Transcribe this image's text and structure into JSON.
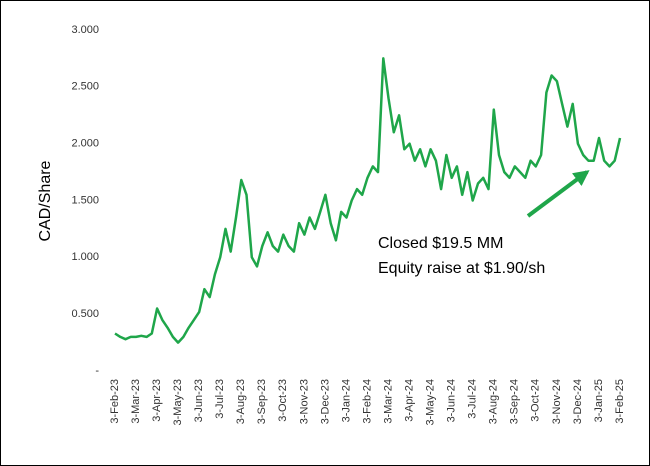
{
  "chart_data": {
    "type": "line",
    "y_label": "CAD/Share",
    "annotation": [
      "Closed $19.5 MM",
      "Equity raise at $1.90/sh"
    ],
    "categories": [
      "3-Feb-23",
      null,
      null,
      null,
      "3-Mar-23",
      null,
      null,
      null,
      "3-Apr-23",
      null,
      null,
      null,
      "3-May-23",
      null,
      null,
      null,
      "3-Jun-23",
      null,
      null,
      null,
      "3-Jul-23",
      null,
      null,
      null,
      "3-Aug-23",
      null,
      null,
      null,
      "3-Sep-23",
      null,
      null,
      null,
      "3-Oct-23",
      null,
      null,
      null,
      "3-Nov-23",
      null,
      null,
      null,
      "3-Dec-23",
      null,
      null,
      null,
      "3-Jan-24",
      null,
      null,
      null,
      "3-Feb-24",
      null,
      null,
      null,
      "3-Mar-24",
      null,
      null,
      null,
      "3-Apr-24",
      null,
      null,
      null,
      "3-May-24",
      null,
      null,
      null,
      "3-Jun-24",
      null,
      null,
      null,
      "3-Jul-24",
      null,
      null,
      null,
      "3-Aug-24",
      null,
      null,
      null,
      "3-Sep-24",
      null,
      null,
      null,
      "3-Oct-24",
      null,
      null,
      null,
      "3-Nov-24",
      null,
      null,
      null,
      "3-Dec-24",
      null,
      null,
      null,
      "3-Jan-25",
      null,
      null,
      null,
      "3-Feb-25"
    ],
    "series": [
      {
        "name": "CAD/Share",
        "color": "#1fa64a",
        "values": [
          0.33,
          0.3,
          0.28,
          0.3,
          0.3,
          0.31,
          0.3,
          0.33,
          0.55,
          0.45,
          0.38,
          0.3,
          0.25,
          0.3,
          0.38,
          0.45,
          0.52,
          0.72,
          0.65,
          0.85,
          1.0,
          1.25,
          1.05,
          1.35,
          1.68,
          1.55,
          1.0,
          0.92,
          1.1,
          1.22,
          1.1,
          1.05,
          1.2,
          1.1,
          1.05,
          1.3,
          1.2,
          1.35,
          1.25,
          1.4,
          1.55,
          1.3,
          1.15,
          1.4,
          1.35,
          1.5,
          1.6,
          1.55,
          1.7,
          1.8,
          1.75,
          2.75,
          2.4,
          2.1,
          2.25,
          1.95,
          2.0,
          1.85,
          1.95,
          1.8,
          1.95,
          1.85,
          1.6,
          1.9,
          1.7,
          1.8,
          1.55,
          1.75,
          1.5,
          1.65,
          1.7,
          1.6,
          2.3,
          1.9,
          1.75,
          1.7,
          1.8,
          1.75,
          1.7,
          1.85,
          1.8,
          1.9,
          2.45,
          2.6,
          2.55,
          2.35,
          2.15,
          2.35,
          2.0,
          1.9,
          1.85,
          1.85,
          2.05,
          1.85,
          1.8,
          1.85,
          2.05
        ]
      }
    ],
    "ylim": [
      0,
      3
    ],
    "yticks": [
      {
        "value": 0,
        "label": "-"
      },
      {
        "value": 0.5,
        "label": "0.500"
      },
      {
        "value": 1,
        "label": "1.000"
      },
      {
        "value": 1.5,
        "label": "1.500"
      },
      {
        "value": 2,
        "label": "2.000"
      },
      {
        "value": 2.5,
        "label": "2.500"
      },
      {
        "value": 3,
        "label": "3.000"
      }
    ]
  }
}
